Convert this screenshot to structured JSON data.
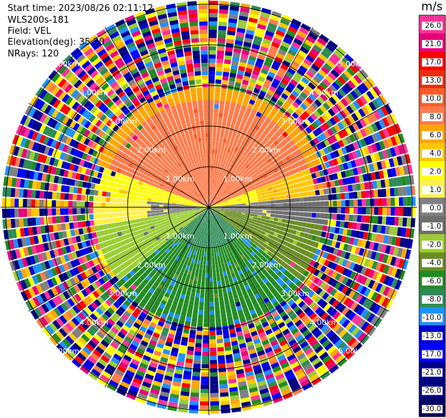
{
  "header": {
    "start_time": "Start time: 2023/08/26 02:11:12",
    "site": "WLS200s-181",
    "field": "Field: VEL",
    "elevation": "Elevation(deg): 35.30",
    "nrays": "NRays: 120"
  },
  "colorbar": {
    "unit": "m/s",
    "ticks": [
      "26.0",
      "21.0",
      "17.0",
      "13.0",
      "10.0",
      "8.0",
      "6.0",
      "4.0",
      "2.0",
      "1.0",
      "0.0",
      "-1.0",
      "-2.0",
      "-4.0",
      "-6.0",
      "-8.0",
      "-10.0",
      "-13.0",
      "-17.0",
      "-21.0",
      "-26.0",
      "-30.0"
    ],
    "colors": [
      "#ff3399",
      "#e6007a",
      "#ff0000",
      "#e83010",
      "#ff5a28",
      "#ff7b4a",
      "#ffa500",
      "#ffc700",
      "#ffff00",
      "#fff04d",
      "#808080",
      "#6e6e6e",
      "#9acd32",
      "#6b8e23",
      "#228b22",
      "#2e8b57",
      "#1e90ff",
      "#0000cd",
      "#0000ff",
      "#00008b",
      "#000080",
      "#000060"
    ]
  },
  "rings": {
    "labels": [
      "1.00km",
      "2.00km",
      "3.00km",
      "4.00km",
      "5.00km"
    ]
  }
}
